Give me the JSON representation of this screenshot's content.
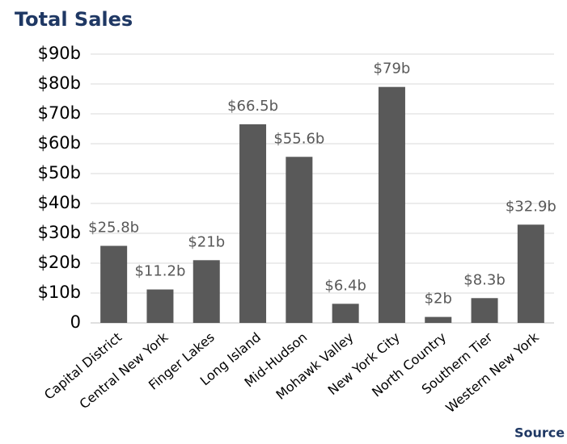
{
  "chart_data": {
    "type": "bar",
    "title": "Total Sales",
    "categories": [
      "Capital District",
      "Central New York",
      "Finger Lakes",
      "Long Island",
      "Mid-Hudson",
      "Mohawk Valley",
      "New York City",
      "North Country",
      "Southern Tier",
      "Western New York"
    ],
    "values": [
      25.8,
      11.2,
      21,
      66.5,
      55.6,
      6.4,
      79,
      2,
      8.3,
      32.9
    ],
    "value_labels": [
      "$25.8b",
      "$11.2b",
      "$21b",
      "$66.5b",
      "$55.6b",
      "$6.4b",
      "$79b",
      "$2b",
      "$8.3b",
      "$32.9b"
    ],
    "color": "#595959",
    "ylim": [
      0,
      90
    ],
    "yticks": [
      0,
      {
        "value": 10,
        "label": "$10b"
      },
      {
        "value": 20,
        "label": "$20b"
      },
      {
        "value": 30,
        "label": "$30b"
      },
      {
        "value": 40,
        "label": "$40b"
      },
      {
        "value": 50,
        "label": "$50b"
      },
      {
        "value": 60,
        "label": "$60b"
      },
      {
        "value": 70,
        "label": "$70b"
      },
      {
        "value": 80,
        "label": "$80b"
      },
      {
        "value": 90,
        "label": "$90b"
      }
    ],
    "grid": true,
    "source": "Source"
  }
}
